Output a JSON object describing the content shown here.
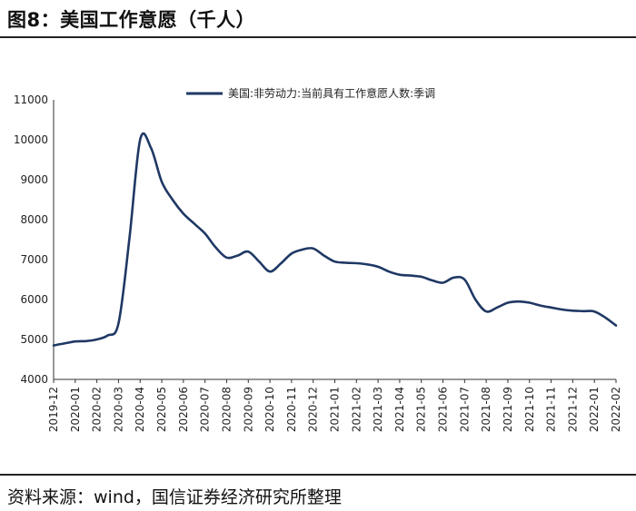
{
  "header": {
    "figure_title": "图8：美国工作意愿（千人）"
  },
  "footer": {
    "source": "资料来源：wind，国信证券经济研究所整理"
  },
  "colors": {
    "series": "#1f3864",
    "axis": "#333333"
  },
  "chart_data": {
    "type": "line",
    "title": "",
    "xlabel": "",
    "ylabel": "",
    "ylim": [
      4000,
      11000
    ],
    "yticks": [
      4000,
      5000,
      6000,
      7000,
      8000,
      9000,
      10000,
      11000
    ],
    "grid": false,
    "legend_position": "top-center",
    "categories": [
      "2019-12",
      "2020-01",
      "2020-02",
      "2020-03",
      "2020-04",
      "2020-05",
      "2020-06",
      "2020-07",
      "2020-08",
      "2020-09",
      "2020-10",
      "2020-11",
      "2020-12",
      "2021-01",
      "2021-02",
      "2021-03",
      "2021-04",
      "2021-05",
      "2021-06",
      "2021-07",
      "2021-08",
      "2021-09",
      "2021-10",
      "2021-11",
      "2021-12",
      "2022-01",
      "2022-02"
    ],
    "series": [
      {
        "name": "美国:非劳动力:当前具有工作意愿人数:季调",
        "x": [
          0,
          0.5,
          1,
          1.5,
          2,
          2.5,
          3,
          3.5,
          4,
          4.5,
          5,
          5.5,
          6,
          6.5,
          7,
          7.5,
          8,
          8.5,
          9,
          9.5,
          10,
          10.5,
          11,
          11.5,
          12,
          12.5,
          13,
          13.5,
          14,
          14.5,
          15,
          15.5,
          16,
          16.5,
          17,
          17.5,
          18,
          18.5,
          19,
          19.5,
          20,
          20.5,
          21,
          21.5,
          22,
          22.5,
          23,
          23.5,
          24,
          24.5,
          25,
          25.5,
          26
        ],
        "values": [
          4850,
          4900,
          4950,
          4960,
          5000,
          5100,
          5400,
          7500,
          10000,
          9800,
          8950,
          8500,
          8150,
          7900,
          7650,
          7300,
          7050,
          7100,
          7200,
          6950,
          6700,
          6900,
          7150,
          7250,
          7280,
          7100,
          6950,
          6920,
          6910,
          6880,
          6820,
          6700,
          6620,
          6600,
          6570,
          6480,
          6420,
          6550,
          6500,
          6000,
          5700,
          5800,
          5920,
          5950,
          5920,
          5850,
          5800,
          5750,
          5720,
          5710,
          5700,
          5550,
          5350
        ]
      }
    ]
  }
}
